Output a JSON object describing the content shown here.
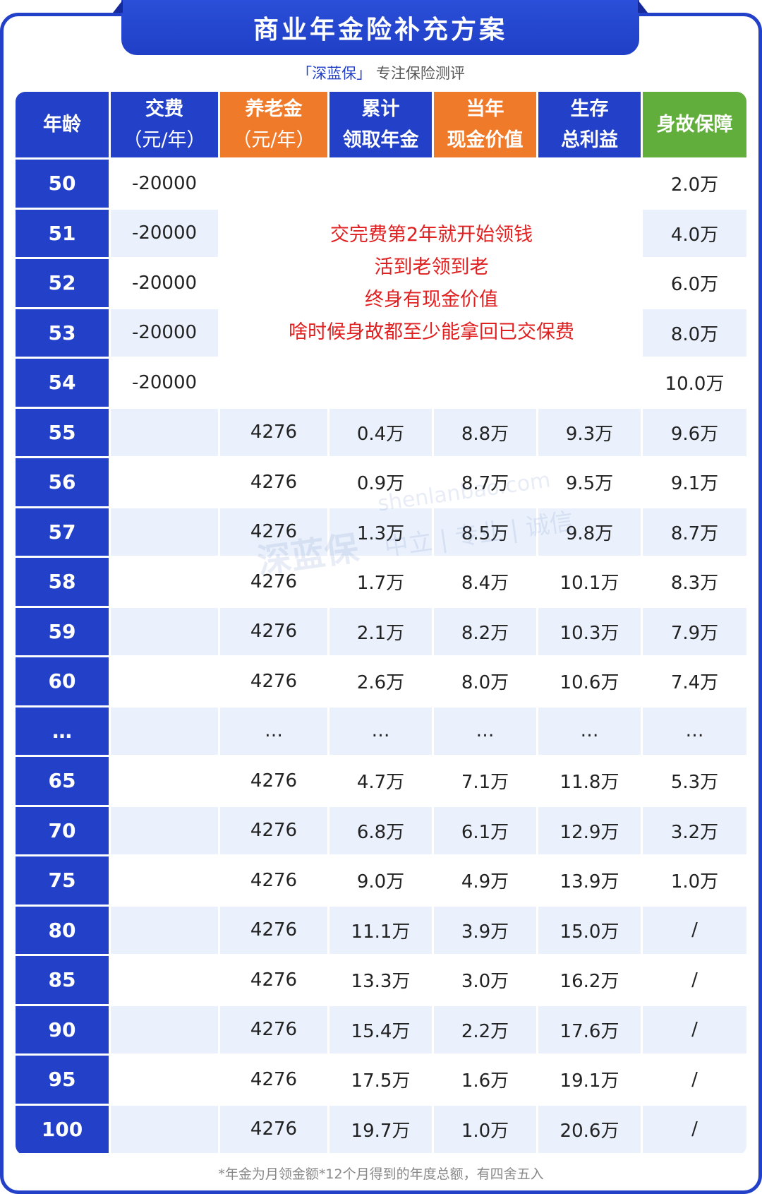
{
  "title": "商业年金险补充方案",
  "subtitle": {
    "brand": "「深蓝保」",
    "text": "专注保险测评"
  },
  "headers": [
    {
      "line1": "年龄",
      "line2": ""
    },
    {
      "line1": "交费",
      "line2": "（元/年）"
    },
    {
      "line1": "养老金",
      "line2": "（元/年）"
    },
    {
      "line1": "累计",
      "line2": "领取年金"
    },
    {
      "line1": "当年",
      "line2": "现金价值"
    },
    {
      "line1": "生存",
      "line2": "总利益"
    },
    {
      "line1": "身故保障",
      "line2": ""
    }
  ],
  "rows": [
    [
      "50",
      "-20000",
      "",
      "",
      "",
      "",
      "2.0万"
    ],
    [
      "51",
      "-20000",
      "",
      "",
      "",
      "",
      "4.0万"
    ],
    [
      "52",
      "-20000",
      "",
      "",
      "",
      "",
      "6.0万"
    ],
    [
      "53",
      "-20000",
      "",
      "",
      "",
      "",
      "8.0万"
    ],
    [
      "54",
      "-20000",
      "",
      "",
      "",
      "",
      "10.0万"
    ],
    [
      "55",
      "",
      "4276",
      "0.4万",
      "8.8万",
      "9.3万",
      "9.6万"
    ],
    [
      "56",
      "",
      "4276",
      "0.9万",
      "8.7万",
      "9.5万",
      "9.1万"
    ],
    [
      "57",
      "",
      "4276",
      "1.3万",
      "8.5万",
      "9.8万",
      "8.7万"
    ],
    [
      "58",
      "",
      "4276",
      "1.7万",
      "8.4万",
      "10.1万",
      "8.3万"
    ],
    [
      "59",
      "",
      "4276",
      "2.1万",
      "8.2万",
      "10.3万",
      "7.9万"
    ],
    [
      "60",
      "",
      "4276",
      "2.6万",
      "8.0万",
      "10.6万",
      "7.4万"
    ],
    [
      "…",
      "",
      "…",
      "…",
      "…",
      "…",
      "…"
    ],
    [
      "65",
      "",
      "4276",
      "4.7万",
      "7.1万",
      "11.8万",
      "5.3万"
    ],
    [
      "70",
      "",
      "4276",
      "6.8万",
      "6.1万",
      "12.9万",
      "3.2万"
    ],
    [
      "75",
      "",
      "4276",
      "9.0万",
      "4.9万",
      "13.9万",
      "1.0万"
    ],
    [
      "80",
      "",
      "4276",
      "11.1万",
      "3.9万",
      "15.0万",
      "/"
    ],
    [
      "85",
      "",
      "4276",
      "13.3万",
      "3.0万",
      "16.2万",
      "/"
    ],
    [
      "90",
      "",
      "4276",
      "15.4万",
      "2.2万",
      "17.6万",
      "/"
    ],
    [
      "95",
      "",
      "4276",
      "17.5万",
      "1.6万",
      "19.1万",
      "/"
    ],
    [
      "100",
      "",
      "4276",
      "19.7万",
      "1.0万",
      "20.6万",
      "/"
    ]
  ],
  "overlay_lines": [
    "交完费第2年就开始领钱",
    "活到老领到老",
    "终身有现金价值",
    "啥时候身故都至少能拿回已交保费"
  ],
  "watermark": {
    "logo": "深蓝保",
    "site": "shenlanbao.com",
    "slogan": "中立 | 专业 | 诚信"
  },
  "footnote": "*年金为月领金额*12个月得到的年度总额，有四舍五入",
  "colors": {
    "primary": "#2340c8",
    "orange": "#ef7a2a",
    "green": "#62ae3c",
    "highlight": "#e02020",
    "stripe": "#eaf1fc"
  }
}
